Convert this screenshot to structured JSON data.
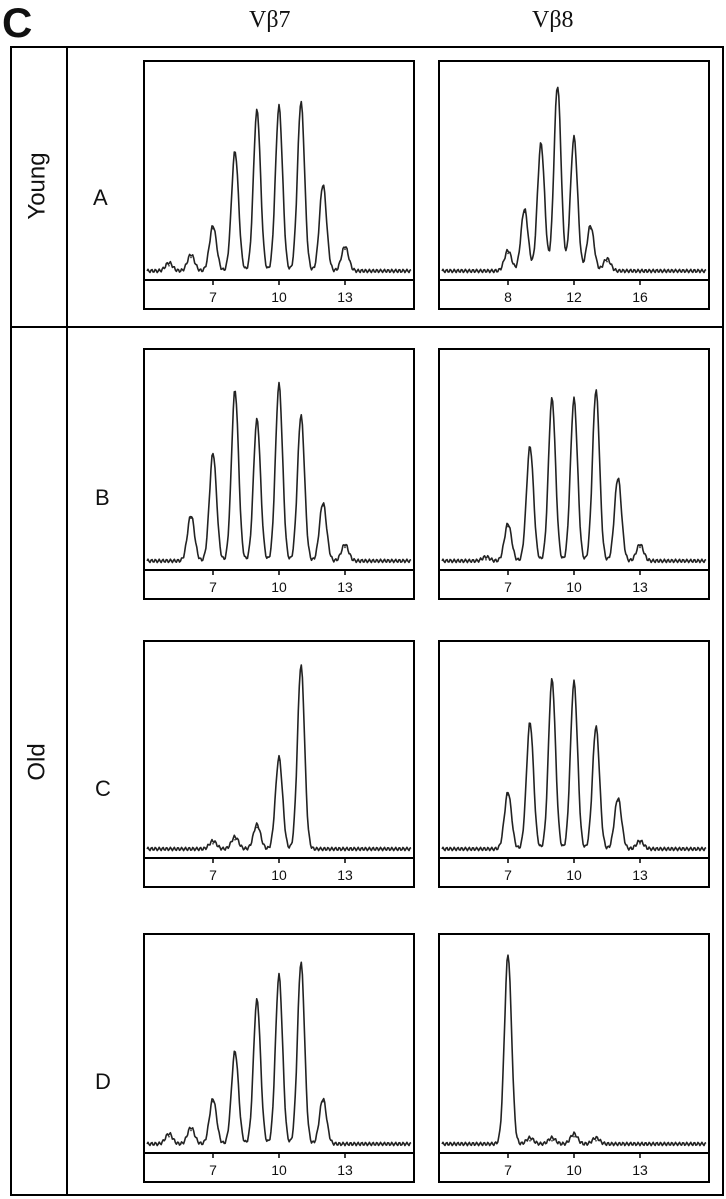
{
  "figure": {
    "panel_letter": "C",
    "column_headers": [
      "Vβ7",
      "Vβ8"
    ],
    "group_labels": {
      "young": "Young",
      "old": "Old"
    },
    "row_labels": [
      "A",
      "B",
      "C",
      "D"
    ]
  },
  "chart_data": [
    {
      "type": "line",
      "row": "A",
      "column": "Vβ7",
      "x_range": [
        4,
        16
      ],
      "y_range": [
        0,
        100
      ],
      "xticks": [
        7,
        10,
        13
      ],
      "peaks": [
        [
          5,
          4
        ],
        [
          6,
          8
        ],
        [
          7,
          22
        ],
        [
          8,
          58
        ],
        [
          9,
          78
        ],
        [
          10,
          80
        ],
        [
          11,
          82
        ],
        [
          12,
          42
        ],
        [
          13,
          12
        ]
      ]
    },
    {
      "type": "line",
      "row": "A",
      "column": "Vβ8",
      "x_range": [
        4,
        20
      ],
      "y_range": [
        0,
        100
      ],
      "xticks": [
        8,
        12,
        16
      ],
      "peaks": [
        [
          8,
          10
        ],
        [
          9,
          30
        ],
        [
          10,
          62
        ],
        [
          11,
          90
        ],
        [
          12,
          65
        ],
        [
          13,
          22
        ],
        [
          14,
          6
        ]
      ]
    },
    {
      "type": "line",
      "row": "B",
      "column": "Vβ7",
      "x_range": [
        4,
        16
      ],
      "y_range": [
        0,
        100
      ],
      "xticks": [
        7,
        10,
        13
      ],
      "peaks": [
        [
          6,
          22
        ],
        [
          7,
          52
        ],
        [
          8,
          82
        ],
        [
          9,
          68
        ],
        [
          10,
          85
        ],
        [
          11,
          70
        ],
        [
          12,
          28
        ],
        [
          13,
          8
        ]
      ]
    },
    {
      "type": "line",
      "row": "B",
      "column": "Vβ8",
      "x_range": [
        4,
        16
      ],
      "y_range": [
        0,
        100
      ],
      "xticks": [
        7,
        10,
        13
      ],
      "peaks": [
        [
          6,
          2
        ],
        [
          7,
          18
        ],
        [
          8,
          55
        ],
        [
          9,
          78
        ],
        [
          10,
          78
        ],
        [
          11,
          82
        ],
        [
          12,
          40
        ],
        [
          13,
          8
        ]
      ]
    },
    {
      "type": "line",
      "row": "C",
      "column": "Vβ7",
      "x_range": [
        4,
        16
      ],
      "y_range": [
        0,
        100
      ],
      "xticks": [
        7,
        10,
        13
      ],
      "peaks": [
        [
          7,
          4
        ],
        [
          8,
          6
        ],
        [
          9,
          12
        ],
        [
          10,
          45
        ],
        [
          11,
          90
        ]
      ]
    },
    {
      "type": "line",
      "row": "C",
      "column": "Vβ8",
      "x_range": [
        4,
        16
      ],
      "y_range": [
        0,
        100
      ],
      "xticks": [
        7,
        10,
        13
      ],
      "peaks": [
        [
          7,
          28
        ],
        [
          8,
          62
        ],
        [
          9,
          83
        ],
        [
          10,
          82
        ],
        [
          11,
          60
        ],
        [
          12,
          25
        ],
        [
          13,
          4
        ]
      ]
    },
    {
      "type": "line",
      "row": "D",
      "column": "Vβ7",
      "x_range": [
        4,
        16
      ],
      "y_range": [
        0,
        100
      ],
      "xticks": [
        7,
        10,
        13
      ],
      "peaks": [
        [
          5,
          5
        ],
        [
          6,
          8
        ],
        [
          7,
          22
        ],
        [
          8,
          45
        ],
        [
          9,
          70
        ],
        [
          10,
          82
        ],
        [
          11,
          88
        ],
        [
          12,
          22
        ]
      ]
    },
    {
      "type": "line",
      "row": "D",
      "column": "Vβ8",
      "x_range": [
        4,
        16
      ],
      "y_range": [
        0,
        100
      ],
      "xticks": [
        7,
        10,
        13
      ],
      "peaks": [
        [
          7,
          92
        ],
        [
          8,
          3
        ],
        [
          9,
          3
        ],
        [
          10,
          5
        ],
        [
          11,
          3
        ]
      ]
    }
  ]
}
